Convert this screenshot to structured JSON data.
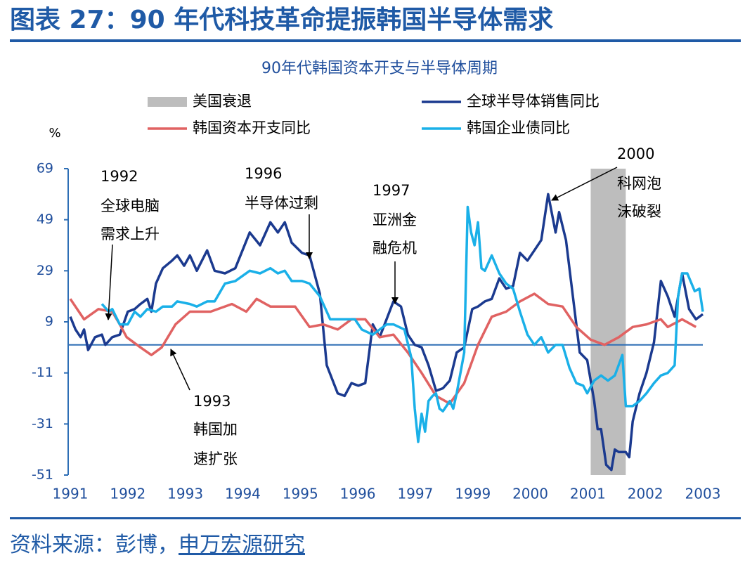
{
  "header": {
    "title": "图表 27：90 年代科技革命提振韩国半导体需求"
  },
  "chart_data": {
    "type": "line",
    "title": "90年代韩国资本开支与半导体周期",
    "y_label": "%",
    "xlim": [
      1991,
      2002
    ],
    "xticks": [
      1991,
      1992,
      1993,
      1994,
      1995,
      1996,
      1997,
      {
        "value": 1998,
        "label": "1999"
      },
      {
        "value": 1999,
        "label": "2000"
      },
      {
        "value": 2000,
        "label": "2001"
      },
      {
        "value": 2001,
        "label": "2002"
      },
      {
        "value": 2002,
        "label": "2003"
      }
    ],
    "ylim": [
      -51,
      69
    ],
    "yticks": [
      69,
      49,
      29,
      9,
      -11,
      -31,
      -51
    ],
    "zero_line": 0,
    "recession": {
      "name": "美国衰退",
      "color": "#bdbdbd",
      "x": [
        2000.05,
        2000.66
      ]
    },
    "series": [
      {
        "name": "全球半导体销售同比",
        "color": "#1b3a8f",
        "x": [
          1991.0,
          1991.09,
          1991.18,
          1991.24,
          1991.31,
          1991.43,
          1991.55,
          1991.61,
          1991.73,
          1991.86,
          1992.0,
          1992.12,
          1992.22,
          1992.34,
          1992.41,
          1992.49,
          1992.61,
          1992.77,
          1992.86,
          1992.98,
          1993.08,
          1993.2,
          1993.38,
          1993.51,
          1993.69,
          1993.87,
          1994.12,
          1994.3,
          1994.48,
          1994.61,
          1994.73,
          1994.85,
          1995.03,
          1995.16,
          1995.34,
          1995.46,
          1995.65,
          1995.77,
          1995.89,
          1996.01,
          1996.13,
          1996.26,
          1996.38,
          1996.5,
          1996.62,
          1996.75,
          1996.87,
          1996.99,
          1997.11,
          1997.23,
          1997.36,
          1997.48,
          1997.6,
          1997.72,
          1997.85,
          1997.99,
          1998.09,
          1998.21,
          1998.33,
          1998.46,
          1998.58,
          1998.7,
          1998.82,
          1998.95,
          1999.07,
          1999.19,
          1999.31,
          1999.44,
          1999.5,
          1999.62,
          1999.74,
          1999.86,
          1999.99,
          2000.11,
          2000.17,
          2000.23,
          2000.32,
          2000.41,
          2000.47,
          2000.54,
          2000.66,
          2000.72,
          2000.78,
          2000.9,
          2001.02,
          2001.15,
          2001.27,
          2001.39,
          2001.51,
          2001.64,
          2001.76,
          2001.88,
          2002.0
        ],
        "values": [
          11,
          6,
          3,
          6,
          -2,
          3,
          4,
          0,
          3,
          4,
          13,
          14,
          16,
          18,
          13,
          24,
          30,
          33,
          35,
          31,
          35,
          29,
          37,
          29,
          28,
          30,
          44,
          39,
          48,
          44,
          48,
          40,
          36,
          35,
          20,
          -8,
          -19,
          -20,
          -15,
          -16,
          -15,
          8,
          3,
          10,
          17,
          15,
          4,
          0,
          -1,
          -8,
          -18,
          -17,
          -14,
          -3,
          -1,
          14,
          15,
          17,
          18,
          26,
          22,
          23,
          36,
          33,
          37,
          41,
          59,
          44,
          52,
          41,
          19,
          -3,
          -6,
          -22,
          -33,
          -33,
          -47,
          -49,
          -41,
          -42,
          -42,
          -44,
          -30,
          -19,
          -11,
          1,
          25,
          19,
          11,
          28,
          14,
          10,
          12
        ]
      },
      {
        "name": "韩国资本开支同比",
        "color": "#e06262",
        "x": [
          1991.0,
          1991.24,
          1991.49,
          1991.73,
          1991.86,
          1991.98,
          1992.22,
          1992.41,
          1992.59,
          1992.83,
          1993.08,
          1993.44,
          1993.81,
          1994.06,
          1994.24,
          1994.48,
          1994.91,
          1995.16,
          1995.4,
          1995.65,
          1995.89,
          1996.13,
          1996.38,
          1996.62,
          1996.87,
          1997.11,
          1997.36,
          1997.6,
          1997.85,
          1998.09,
          1998.33,
          1998.58,
          1998.82,
          1999.07,
          1999.31,
          1999.56,
          1999.8,
          2000.05,
          2000.29,
          2000.54,
          2000.78,
          2001.02,
          2001.27,
          2001.39,
          2001.64,
          2001.88
        ],
        "values": [
          18,
          10,
          14,
          13,
          8,
          3,
          -1,
          -4,
          -1,
          8,
          13,
          13,
          16,
          13,
          18,
          15,
          15,
          7,
          8,
          6,
          10,
          10,
          3,
          4,
          -3,
          -11,
          -20,
          -23,
          -15,
          0,
          11,
          13,
          17,
          20,
          16,
          15,
          7,
          2,
          0,
          3,
          7,
          8,
          10,
          7,
          10,
          7
        ]
      },
      {
        "name": "韩国企业债同比",
        "color": "#1ab0e8",
        "x": [
          1991.55,
          1991.67,
          1991.73,
          1991.86,
          1992.0,
          1992.12,
          1992.22,
          1992.34,
          1992.49,
          1992.61,
          1992.77,
          1992.86,
          1993.08,
          1993.2,
          1993.38,
          1993.51,
          1993.69,
          1993.87,
          1994.12,
          1994.3,
          1994.48,
          1994.61,
          1994.73,
          1994.85,
          1995.03,
          1995.16,
          1995.34,
          1995.52,
          1995.77,
          1995.95,
          1996.07,
          1996.26,
          1996.38,
          1996.5,
          1996.62,
          1996.81,
          1996.93,
          1996.99,
          1997.05,
          1997.11,
          1997.17,
          1997.23,
          1997.3,
          1997.36,
          1997.42,
          1997.48,
          1997.6,
          1997.66,
          1997.72,
          1997.85,
          1997.91,
          1997.97,
          1998.03,
          1998.09,
          1998.15,
          1998.21,
          1998.33,
          1998.46,
          1998.58,
          1998.7,
          1998.82,
          1998.95,
          1999.07,
          1999.19,
          1999.31,
          1999.44,
          1999.56,
          1999.68,
          1999.8,
          1999.92,
          1999.99,
          2000.11,
          2000.23,
          2000.35,
          2000.47,
          2000.6,
          2000.66,
          2000.78,
          2000.9,
          2001.02,
          2001.15,
          2001.27,
          2001.39,
          2001.51,
          2001.57,
          2001.64,
          2001.73,
          2001.86,
          2001.94,
          2002.0
        ],
        "values": [
          16,
          13,
          14,
          8,
          8,
          13,
          11,
          14,
          13,
          15,
          15,
          17,
          16,
          15,
          17,
          17,
          24,
          25,
          29,
          28,
          30,
          28,
          29,
          25,
          25,
          24,
          19,
          10,
          10,
          10,
          6,
          4,
          6,
          8,
          8,
          6,
          -5,
          -25,
          -38,
          -27,
          -34,
          -22,
          -20,
          -19,
          -25,
          -26,
          -22,
          -25,
          -19,
          -3,
          54,
          44,
          39,
          48,
          30,
          29,
          35,
          28,
          24,
          22,
          13,
          4,
          0,
          3,
          -3,
          0,
          0,
          -9,
          -15,
          -16,
          -19,
          -14,
          -12,
          -14,
          -12,
          -4,
          -24,
          -24,
          -22,
          -19,
          -15,
          -12,
          -11,
          -8,
          19,
          28,
          28,
          21,
          22,
          13
        ]
      }
    ],
    "annotations": [
      {
        "lines": [
          "1992",
          "全球电脑",
          "需求上升"
        ]
      },
      {
        "lines": [
          "1996",
          "半导体过剩"
        ]
      },
      {
        "lines": [
          "1997",
          "亚洲金",
          "融危机"
        ]
      },
      {
        "lines": [
          "2000",
          "科网泡",
          "沫破裂"
        ]
      },
      {
        "lines": [
          "1993",
          "韩国加",
          "速扩张"
        ]
      }
    ]
  },
  "footer": {
    "source": "资料来源：彭博，",
    "org": "申万宏源研究"
  }
}
